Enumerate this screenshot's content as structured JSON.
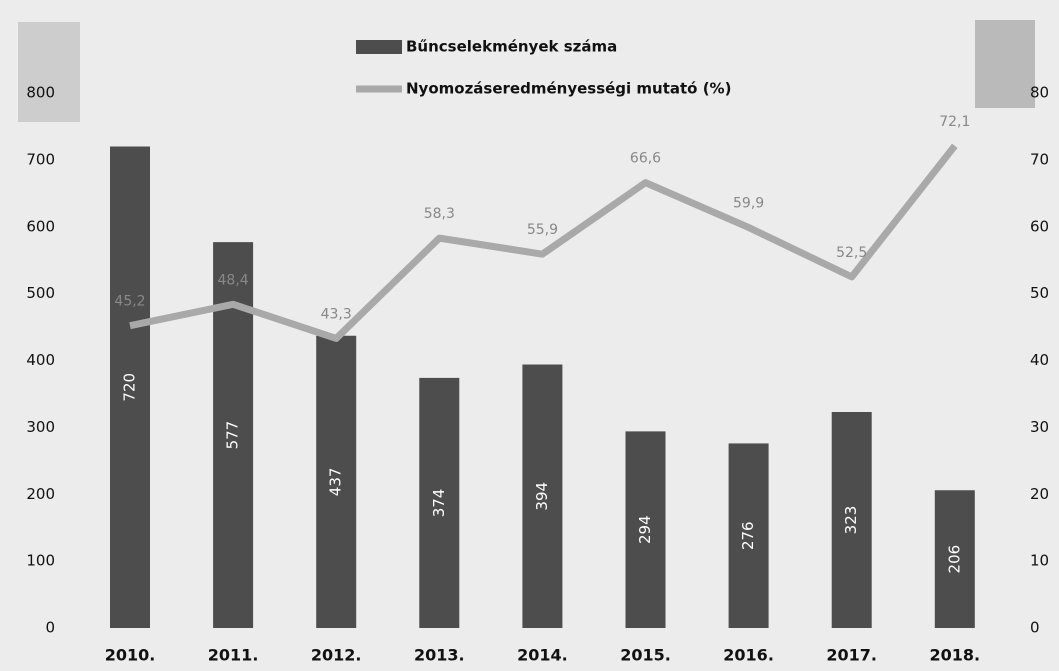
{
  "chart_data": {
    "type": "bar",
    "categories": [
      "2010.",
      "2011.",
      "2012.",
      "2013.",
      "2014.",
      "2015.",
      "2016.",
      "2017.",
      "2018."
    ],
    "series": [
      {
        "name": "Bűncselekmények száma",
        "type": "bar",
        "color": "#4d4d4d",
        "values": [
          720,
          577,
          437,
          374,
          394,
          294,
          276,
          323,
          206
        ]
      },
      {
        "name": "Nyomozáseredményességi mutató (%)",
        "type": "line",
        "axis": "y2",
        "color": "#a9a9a9",
        "values": [
          45.2,
          48.4,
          43.3,
          58.3,
          55.9,
          66.6,
          59.9,
          52.5,
          72.1
        ],
        "value_labels": [
          "45,2",
          "48,4",
          "43,3",
          "58,3",
          "55,9",
          "66,6",
          "59,9",
          "52,5",
          "72,1"
        ]
      }
    ],
    "ylim": [
      0,
      800
    ],
    "yticks": [
      0,
      100,
      200,
      300,
      400,
      500,
      600,
      700,
      800
    ],
    "y2lim": [
      0,
      80
    ],
    "y2ticks": [
      0,
      10,
      20,
      30,
      40,
      50,
      60,
      70,
      80
    ]
  }
}
